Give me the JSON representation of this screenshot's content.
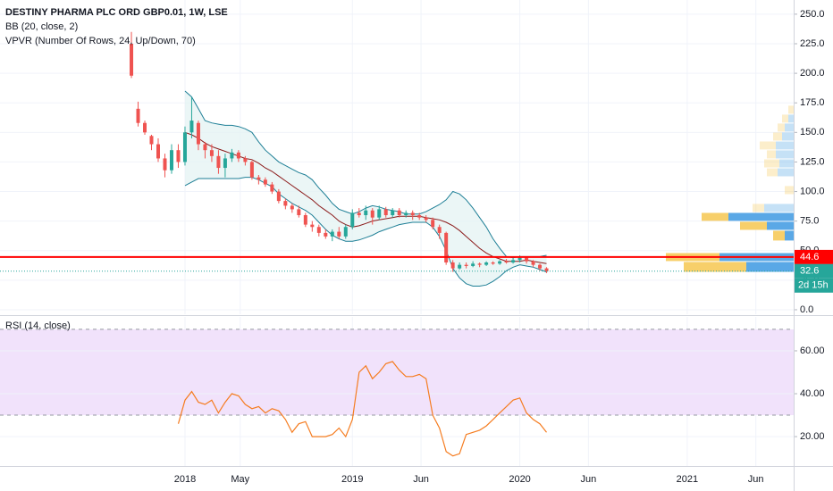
{
  "chart_data": [
    {
      "type": "candlestick",
      "title": "DESTINY PHARMA PLC ORD GBP0.01, 1W, LSE",
      "x": [
        2017.68,
        2017.72,
        2017.76,
        2017.8,
        2017.84,
        2017.88,
        2017.92,
        2017.96,
        2018,
        2018.04,
        2018.08,
        2018.12,
        2018.16,
        2018.2,
        2018.24,
        2018.28,
        2018.32,
        2018.36,
        2018.4,
        2018.44,
        2018.48,
        2018.52,
        2018.56,
        2018.6,
        2018.64,
        2018.68,
        2018.72,
        2018.76,
        2018.8,
        2018.84,
        2018.88,
        2018.92,
        2018.96,
        2019,
        2019.04,
        2019.08,
        2019.12,
        2019.16,
        2019.2,
        2019.24,
        2019.28,
        2019.32,
        2019.36,
        2019.4,
        2019.44,
        2019.48,
        2019.52,
        2019.56,
        2019.6,
        2019.64,
        2019.68,
        2019.72,
        2019.76,
        2019.8,
        2019.84,
        2019.88,
        2019.92,
        2019.96,
        2020,
        2020.04,
        2020.08,
        2020.12,
        2020.16
      ],
      "open": [
        225,
        170,
        158,
        147,
        140,
        128,
        118,
        135,
        125,
        150,
        158,
        140,
        135,
        130,
        120,
        128,
        133,
        128,
        125,
        112,
        110,
        106,
        100,
        92,
        88,
        85,
        80,
        72,
        70,
        65,
        62,
        66,
        62,
        70,
        82,
        80,
        84,
        78,
        85,
        80,
        84,
        80,
        82,
        80,
        78,
        76,
        70,
        65,
        40,
        35,
        38,
        37,
        39,
        38,
        40,
        39,
        41,
        40,
        42,
        44,
        41,
        38,
        35
      ],
      "high": [
        235,
        176,
        160,
        148,
        145,
        132,
        140,
        140,
        155,
        180,
        160,
        142,
        140,
        135,
        132,
        136,
        135,
        130,
        126,
        114,
        112,
        108,
        102,
        94,
        90,
        88,
        82,
        75,
        72,
        68,
        68,
        70,
        72,
        85,
        86,
        88,
        86,
        88,
        87,
        86,
        86,
        84,
        84,
        82,
        80,
        78,
        72,
        66,
        42,
        40,
        40,
        41,
        40,
        41,
        41,
        42,
        43,
        44,
        46,
        45,
        42,
        39,
        36
      ],
      "low": [
        196,
        155,
        148,
        135,
        125,
        112,
        115,
        120,
        122,
        145,
        135,
        128,
        125,
        115,
        112,
        125,
        125,
        122,
        110,
        106,
        104,
        98,
        90,
        85,
        82,
        78,
        70,
        66,
        62,
        60,
        58,
        60,
        60,
        68,
        78,
        76,
        72,
        76,
        78,
        78,
        78,
        78,
        76,
        76,
        74,
        68,
        60,
        38,
        32,
        34,
        35,
        36,
        36,
        37,
        38,
        38,
        39,
        39,
        40,
        39,
        36,
        33,
        31
      ],
      "close": [
        198,
        158,
        150,
        140,
        128,
        118,
        135,
        125,
        150,
        160,
        140,
        135,
        130,
        120,
        128,
        133,
        128,
        125,
        112,
        110,
        106,
        100,
        92,
        88,
        85,
        80,
        72,
        70,
        65,
        62,
        66,
        62,
        70,
        82,
        80,
        84,
        78,
        85,
        80,
        84,
        80,
        82,
        80,
        78,
        76,
        70,
        65,
        40,
        35,
        38,
        37,
        39,
        38,
        40,
        39,
        41,
        40,
        42,
        44,
        41,
        38,
        35,
        32.6
      ],
      "up_color": "#26a69a",
      "down_color": "#ef5350",
      "bollinger": {
        "label": "BB (20, close, 2)",
        "band_color": "#1e7f96",
        "middle_color": "#8b1a1a",
        "fill_color": "#e3f2f2",
        "upper": [
          null,
          null,
          null,
          null,
          null,
          null,
          null,
          null,
          185,
          180,
          170,
          160,
          158,
          157,
          156,
          156,
          155,
          153,
          150,
          142,
          135,
          130,
          125,
          122,
          119,
          116,
          114,
          110,
          103,
          97,
          90,
          85,
          83,
          81,
          83,
          86,
          88,
          87,
          85,
          84,
          83,
          81,
          81,
          81,
          83,
          86,
          89,
          93,
          100,
          98,
          93,
          86,
          78,
          70,
          60,
          52,
          45,
          44,
          45,
          45,
          45,
          45,
          46
        ],
        "middle": [
          null,
          null,
          null,
          null,
          null,
          null,
          null,
          null,
          150,
          148,
          145,
          141,
          138,
          136,
          134,
          132,
          130,
          128,
          127,
          124,
          120,
          117,
          113,
          109,
          105,
          101,
          97,
          93,
          88,
          84,
          80,
          75,
          72,
          70,
          71,
          73,
          75,
          76,
          77,
          78,
          79,
          79,
          79,
          79,
          78,
          77,
          76,
          74,
          71,
          67,
          62,
          57,
          52,
          48,
          45,
          43,
          41,
          41,
          41,
          42,
          41,
          40,
          39
        ],
        "lower": [
          null,
          null,
          null,
          null,
          null,
          null,
          null,
          null,
          105,
          108,
          111,
          111,
          111,
          111,
          111,
          111,
          111,
          112,
          112,
          110,
          107,
          104,
          98,
          94,
          90,
          87,
          84,
          80,
          74,
          68,
          63,
          60,
          58,
          58,
          59,
          61,
          63,
          66,
          68,
          70,
          72,
          73,
          74,
          74,
          74,
          70,
          62,
          50,
          35,
          27,
          22,
          20,
          20,
          21,
          24,
          28,
          33,
          36,
          38,
          37,
          36,
          34,
          32
        ]
      },
      "volume_profile": {
        "label": "VPVR (Number Of Rows, 24, Up/Down, 70)",
        "up_color": "#5aa8e6",
        "down_color": "#f7cf6a",
        "rows": [
          {
            "low": 31.7,
            "high": 40.8,
            "up": 53,
            "down": 70,
            "value_area": true
          },
          {
            "low": 40.8,
            "high": 48.3,
            "up": 83,
            "down": 60,
            "value_area": true
          },
          {
            "low": 58.2,
            "high": 67.2,
            "up": 10,
            "down": 13,
            "value_area": true
          },
          {
            "low": 67.2,
            "high": 74.8,
            "up": 30,
            "down": 30,
            "value_area": true
          },
          {
            "low": 74.8,
            "high": 82.3,
            "up": 73,
            "down": 30,
            "value_area": true
          },
          {
            "low": 82.3,
            "high": 89.9,
            "up": 33,
            "down": 13,
            "value_area": false
          },
          {
            "low": 97.4,
            "high": 105,
            "up": 0,
            "down": 10,
            "value_area": false
          },
          {
            "low": 112.5,
            "high": 120,
            "up": 18,
            "down": 12,
            "value_area": false
          },
          {
            "low": 120,
            "high": 127.6,
            "up": 16,
            "down": 17,
            "value_area": false
          },
          {
            "low": 127.6,
            "high": 135.2,
            "up": 20,
            "down": 10,
            "value_area": false
          },
          {
            "low": 135.2,
            "high": 142.7,
            "up": 20,
            "down": 18,
            "value_area": false
          },
          {
            "low": 142.7,
            "high": 150.3,
            "up": 13,
            "down": 10,
            "value_area": false
          },
          {
            "low": 150.3,
            "high": 157.9,
            "up": 10,
            "down": 8,
            "value_area": false
          },
          {
            "low": 157.9,
            "high": 165.4,
            "up": 6,
            "down": 7,
            "value_area": false
          },
          {
            "low": 165.4,
            "high": 173,
            "up": 0,
            "down": 6,
            "value_area": false
          }
        ]
      },
      "price_lines": [
        {
          "value": 44.6,
          "color": "#ff0000",
          "style": "solid"
        },
        {
          "value": 32.6,
          "color": "#26a69a",
          "style": "dotted",
          "countdown": "2d 15h"
        }
      ],
      "xlim": [
        2016.895,
        2021.636
      ],
      "ylim": [
        -3.8,
        262
      ],
      "yticks": [
        {
          "value": 0,
          "label": "0.0"
        },
        {
          "value": 25,
          "label": "25.0"
        },
        {
          "value": 50,
          "label": "50.0"
        },
        {
          "value": 75,
          "label": "75.0"
        },
        {
          "value": 100,
          "label": "100.0"
        },
        {
          "value": 125,
          "label": "125.0"
        },
        {
          "value": 150,
          "label": "150.0"
        },
        {
          "value": 175,
          "label": "175.0"
        },
        {
          "value": 200,
          "label": "200.0"
        },
        {
          "value": 225,
          "label": "225.0"
        },
        {
          "value": 250,
          "label": "250.0"
        }
      ],
      "grid": true
    },
    {
      "type": "line",
      "title": "RSI (14, close)",
      "color": "#f57c20",
      "values": [
        null,
        null,
        null,
        null,
        null,
        null,
        null,
        26,
        37,
        41,
        36,
        35,
        37,
        31,
        36,
        40,
        39,
        35,
        33,
        34,
        31,
        33,
        32,
        28,
        22,
        26,
        27,
        20,
        20,
        20,
        21,
        24,
        20,
        28,
        50,
        53,
        47,
        50,
        54,
        55,
        51,
        48,
        48,
        49,
        47,
        30,
        24,
        13,
        11,
        12,
        21,
        22,
        23,
        25,
        28,
        31,
        34,
        37,
        38,
        31,
        28,
        26,
        22
      ],
      "bands": [
        30,
        70
      ],
      "band_color": "#f1e2fb",
      "xlim": [
        2016.895,
        2021.636
      ],
      "xticks": [
        {
          "value": 2018,
          "label": "2018"
        },
        {
          "value": 2018.33,
          "label": "May"
        },
        {
          "value": 2019,
          "label": "2019"
        },
        {
          "value": 2019.41,
          "label": "Jun"
        },
        {
          "value": 2020,
          "label": "2020"
        },
        {
          "value": 2020.41,
          "label": "Jun"
        },
        {
          "value": 2021,
          "label": "2021"
        },
        {
          "value": 2021.41,
          "label": "Jun"
        }
      ],
      "ylim": [
        6.3,
        75.8
      ],
      "yticks": [
        {
          "value": 20,
          "label": "20.00"
        },
        {
          "value": 40,
          "label": "40.00"
        },
        {
          "value": 60,
          "label": "60.00"
        }
      ],
      "grid": true
    }
  ]
}
